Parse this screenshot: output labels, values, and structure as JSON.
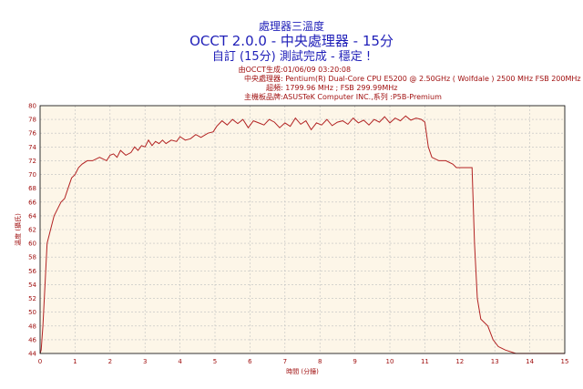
{
  "header": {
    "title": "處理器三溫度",
    "subtitle": "OCCT 2.0.0 - 中央處理器 - 15分",
    "status": "自訂 (15分) 測試完成 - 穩定 !"
  },
  "info": [
    {
      "key": "由OCCT生成",
      "value": ":01/06/09 03:20:08"
    },
    {
      "key": "中央處理器",
      "value": ": Pentium(R) Dual-Core CPU E5200 @ 2.50GHz ( Wolfdale ) 2500 MHz FSB 200MHz"
    },
    {
      "key": "超頻",
      "value": ": 1799.96 MHz ; FSB 299.99MHz"
    },
    {
      "key": "主機板品牌",
      "value": ":ASUSTeK Computer INC.,系列 :P5B-Premium"
    }
  ],
  "colors": {
    "line": "#b22222",
    "plot_bg": "#fdf6e8",
    "grid": "#c0c0c0",
    "title": "#1f1fb8",
    "label": "#a01010"
  },
  "chart_data": {
    "type": "line",
    "xlabel": "時間 (分鐘)",
    "ylabel": "溫度 (攝氏)",
    "xlim": [
      0,
      15
    ],
    "ylim": [
      44,
      80
    ],
    "xticks": [
      0,
      1,
      2,
      3,
      4,
      5,
      6,
      7,
      8,
      9,
      10,
      11,
      12,
      13,
      14,
      15
    ],
    "yticks": [
      44,
      46,
      48,
      50,
      52,
      54,
      56,
      58,
      60,
      62,
      64,
      66,
      68,
      70,
      72,
      74,
      76,
      78,
      80
    ],
    "grid": true,
    "series": [
      {
        "x": [
          0,
          0.03,
          0.08,
          0.15,
          0.2,
          0.3,
          0.4,
          0.5,
          0.6,
          0.7,
          0.8,
          0.9,
          1.0,
          1.1,
          1.2,
          1.35,
          1.5,
          1.7,
          1.9,
          2.0,
          2.1,
          2.2,
          2.3,
          2.45,
          2.6,
          2.7,
          2.8,
          2.9,
          3.0,
          3.1,
          3.2,
          3.3,
          3.4,
          3.5,
          3.6,
          3.75,
          3.9,
          4.0,
          4.15,
          4.3,
          4.45,
          4.6,
          4.8,
          4.95,
          5.05,
          5.2,
          5.35,
          5.5,
          5.65,
          5.8,
          5.95,
          6.1,
          6.25,
          6.4,
          6.55,
          6.7,
          6.85,
          7.0,
          7.15,
          7.3,
          7.45,
          7.6,
          7.75,
          7.9,
          8.05,
          8.2,
          8.35,
          8.5,
          8.65,
          8.8,
          8.95,
          9.1,
          9.25,
          9.4,
          9.55,
          9.7,
          9.85,
          10.0,
          10.15,
          10.3,
          10.45,
          10.6,
          10.75,
          10.9,
          11.0,
          11.1,
          11.2,
          11.4,
          11.6,
          11.8,
          11.9,
          12.0,
          12.2,
          12.35,
          12.42,
          12.5,
          12.6,
          12.8,
          12.95,
          13.1,
          13.3,
          13.6,
          14.0,
          14.5,
          15.0
        ],
        "y": [
          44,
          44.5,
          48,
          55,
          60,
          62,
          64,
          65,
          66,
          66.5,
          68,
          69.5,
          70,
          71,
          71.5,
          72,
          72,
          72.5,
          72,
          72.8,
          73,
          72.5,
          73.5,
          72.8,
          73.2,
          74,
          73.5,
          74.2,
          74,
          75,
          74.2,
          74.8,
          74.5,
          75,
          74.5,
          75,
          74.8,
          75.5,
          75,
          75.2,
          75.8,
          75.4,
          76,
          76.2,
          77,
          77.8,
          77.2,
          78,
          77.4,
          78,
          76.8,
          77.8,
          77.5,
          77.2,
          78,
          77.6,
          76.8,
          77.5,
          77,
          78.2,
          77.3,
          77.8,
          76.5,
          77.5,
          77.2,
          78,
          77.1,
          77.6,
          77.8,
          77.3,
          78.2,
          77.5,
          77.9,
          77.2,
          78,
          77.6,
          78.4,
          77.5,
          78.2,
          77.8,
          78.5,
          77.9,
          78.2,
          78,
          77.6,
          74,
          72.5,
          72,
          72,
          71.5,
          71,
          71,
          71,
          71,
          60,
          52,
          49,
          48,
          46,
          45,
          44.5,
          44,
          44,
          44,
          44
        ]
      }
    ]
  }
}
